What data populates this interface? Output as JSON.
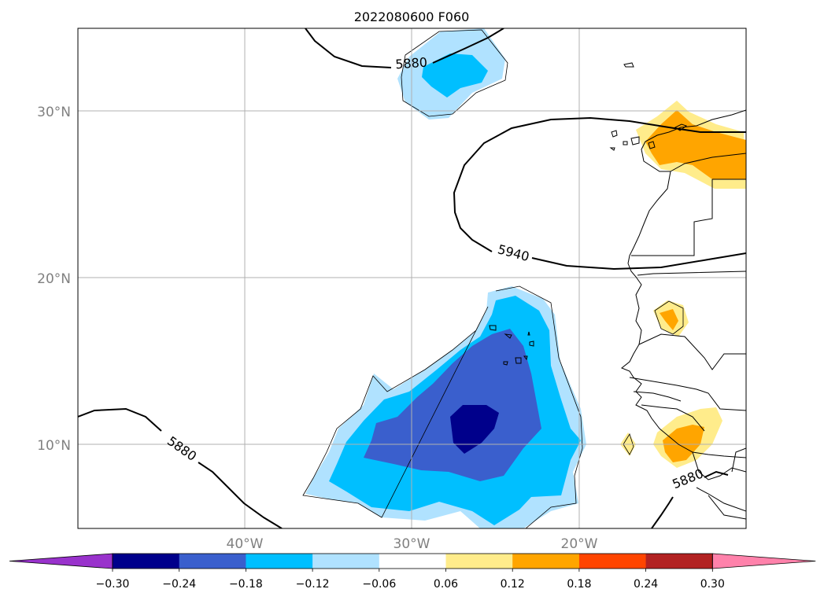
{
  "title": "2022080600 F060",
  "lat_labels": [
    "30°N",
    "20°N",
    "10°N"
  ],
  "lon_labels": [
    "40°W",
    "30°W",
    "20°W"
  ],
  "contour_labels": [
    "5880",
    "5940",
    "5880",
    "5880"
  ],
  "colorbar": {
    "tick_labels": [
      "−0.30",
      "−0.24",
      "−0.18",
      "−0.12",
      "−0.06",
      "0.06",
      "0.12",
      "0.18",
      "0.24",
      "0.30"
    ],
    "colors": [
      "#9932cc",
      "#00008b",
      "#3a5fcd",
      "#00bfff",
      "#b0e2ff",
      "#ffffff",
      "#ffec8b",
      "#ffa500",
      "#ff4500",
      "#b22222",
      "#ff82ab"
    ]
  },
  "colors": {
    "neg_006": "#b0e2ff",
    "neg_012": "#00bfff",
    "neg_018": "#3a5fcd",
    "neg_024": "#00008b",
    "pos_006": "#ffec8b",
    "pos_012": "#ffa500",
    "grid": "#b0b0b0"
  }
}
